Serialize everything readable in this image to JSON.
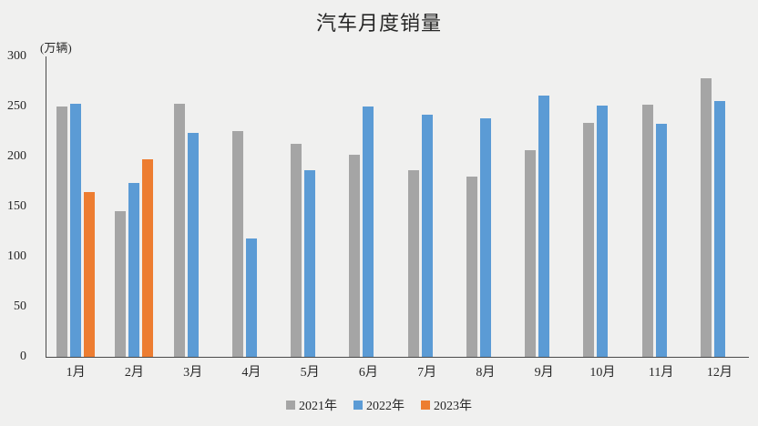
{
  "title": "汽车月度销量",
  "axis_unit_label": "(万辆)",
  "colors": {
    "background": "#f0f0ef",
    "axis": "#4a4a4a",
    "text": "#262626",
    "series_2021": "#a5a5a5",
    "series_2022": "#5b9bd5",
    "series_2023": "#ed7d31"
  },
  "chart_data": {
    "type": "bar",
    "title": "汽车月度销量",
    "ylabel": "(万辆)",
    "xlabel": "",
    "categories": [
      "1月",
      "2月",
      "3月",
      "4月",
      "5月",
      "6月",
      "7月",
      "8月",
      "9月",
      "10月",
      "11月",
      "12月"
    ],
    "series": [
      {
        "name": "2021年",
        "color": "#a5a5a5",
        "values": [
          250.3,
          145.5,
          252.6,
          225.2,
          212.8,
          201.5,
          186.4,
          179.9,
          206.7,
          233.3,
          252.2,
          278.6
        ]
      },
      {
        "name": "2022年",
        "color": "#5b9bd5",
        "values": [
          253.1,
          173.7,
          223.4,
          118.1,
          186.2,
          250.2,
          242.0,
          238.3,
          261.0,
          250.5,
          232.8,
          255.7
        ]
      },
      {
        "name": "2023年",
        "color": "#ed7d31",
        "values": [
          164.9,
          197.6,
          null,
          null,
          null,
          null,
          null,
          null,
          null,
          null,
          null,
          null
        ]
      }
    ],
    "ylim": [
      0,
      300
    ],
    "yticks": [
      0,
      50,
      100,
      150,
      200,
      250,
      300
    ],
    "grid": false,
    "legend_position": "bottom"
  }
}
